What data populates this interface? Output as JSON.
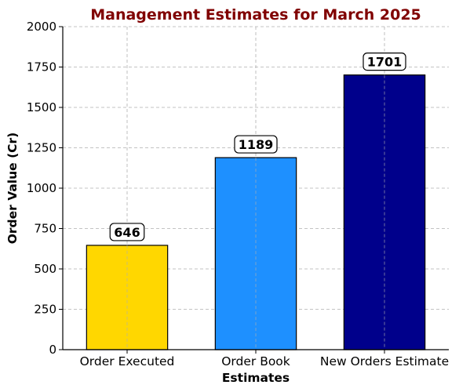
{
  "chart_data": {
    "type": "bar",
    "title": "Management Estimates for March 2025",
    "xlabel": "Estimates",
    "ylabel": "Order Value (Cr)",
    "categories": [
      "Order Executed",
      "Order Book",
      "New Orders Estimate"
    ],
    "values": [
      646,
      1189,
      1701
    ],
    "data_labels": [
      "646",
      "1189",
      "1701"
    ],
    "colors": [
      "#FFD700",
      "#1E90FF",
      "#00008B"
    ],
    "title_color": "#800000",
    "ylim": [
      0,
      2000
    ],
    "yticks": [
      "0",
      "250",
      "500",
      "750",
      "1000",
      "1250",
      "1500",
      "1750",
      "2000"
    ],
    "grid": true
  }
}
